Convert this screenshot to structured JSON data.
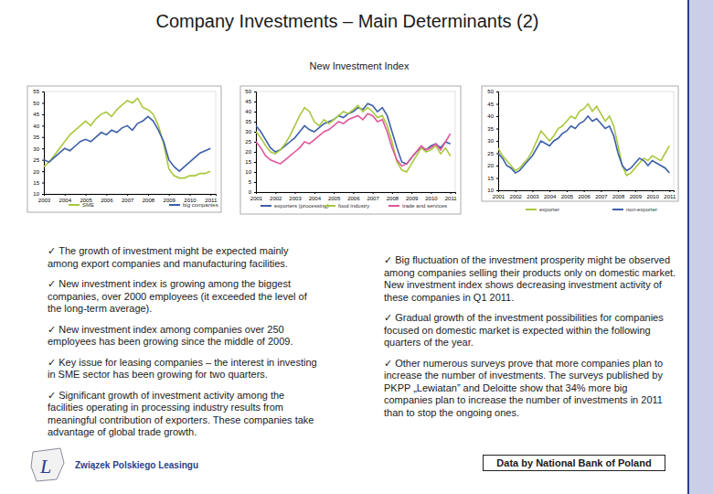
{
  "title": "Company Investments – Main Determinants (2)",
  "subtitle": "New Investment Index",
  "bullet_mark": "✓",
  "left_bullets": [
    "The growth of investment might be expected mainly among export companies and manufacturing facilities.",
    "New investment index is growing among the biggest companies, over 2000 employees (it exceeded the level of the long-term average).",
    "New investment index among companies over 250 employees has been growing since the middle of 2009.",
    "Key issue for leasing companies – the interest in investing in SME sector has been growing for two quarters.",
    "Significant growth of investment activity among the facilities operating in processing industry results from meaningful contribution of exporters. These companies take advantage of global trade growth."
  ],
  "right_bullets": [
    "Big fluctuation of the investment prosperity might be observed among companies selling their products only on domestic market. New investment index shows decreasing investment activity of these companies in Q1 2011.",
    "Gradual growth of the investment possibilities for companies focused on domestic market is expected within the following quarters of the year.",
    "Other numerous surveys prove that more companies plan to increase the number of investments. The surveys published by PKPP „Lewiatan” and Deloitte show that 34% more big companies plan to increase the number of investments in 2011 than to stop the ongoing ones."
  ],
  "source": "Data by National Bank of Poland",
  "logo_mark": "L",
  "logo_text": "Związek Polskiego Leasingu",
  "chart_data": [
    {
      "type": "line",
      "grid": false,
      "x": [
        2003,
        2003.25,
        2003.5,
        2003.75,
        2004,
        2004.25,
        2004.5,
        2004.75,
        2005,
        2005.25,
        2005.5,
        2005.75,
        2006,
        2006.25,
        2006.5,
        2006.75,
        2007,
        2007.25,
        2007.5,
        2007.75,
        2008,
        2008.25,
        2008.5,
        2008.75,
        2009,
        2009.25,
        2009.5,
        2009.75,
        2010,
        2010.25,
        2010.5,
        2010.75,
        2011
      ],
      "xlim": [
        2003,
        2011.25
      ],
      "xticks": [
        2003,
        2004,
        2005,
        2006,
        2007,
        2008,
        2009,
        2010,
        2011
      ],
      "ylim": [
        10,
        55
      ],
      "yticks": [
        10,
        15,
        20,
        25,
        30,
        35,
        40,
        45,
        50,
        55
      ],
      "series": [
        {
          "name": "SME",
          "color": "#a8c83c",
          "values": [
            22,
            24,
            27,
            30,
            33,
            36,
            38,
            40,
            42,
            40,
            43,
            45,
            46,
            44,
            47,
            49,
            51,
            50,
            52,
            48,
            47,
            45,
            40,
            32,
            21,
            18,
            17,
            17,
            18,
            18,
            19,
            19,
            20
          ]
        },
        {
          "name": "big companies",
          "color": "#3d5fa8",
          "values": [
            25,
            24,
            26,
            28,
            30,
            29,
            31,
            33,
            34,
            33,
            35,
            37,
            36,
            38,
            37,
            39,
            40,
            38,
            41,
            42,
            44,
            42,
            38,
            33,
            25,
            22,
            20,
            22,
            24,
            26,
            28,
            29,
            30
          ]
        }
      ]
    },
    {
      "type": "line",
      "grid": false,
      "x": [
        2001,
        2001.25,
        2001.5,
        2001.75,
        2002,
        2002.25,
        2002.5,
        2002.75,
        2003,
        2003.25,
        2003.5,
        2003.75,
        2004,
        2004.25,
        2004.5,
        2004.75,
        2005,
        2005.25,
        2005.5,
        2005.75,
        2006,
        2006.25,
        2006.5,
        2006.75,
        2007,
        2007.25,
        2007.5,
        2007.75,
        2008,
        2008.25,
        2008.5,
        2008.75,
        2009,
        2009.25,
        2009.5,
        2009.75,
        2010,
        2010.25,
        2010.5,
        2010.75,
        2011
      ],
      "xlim": [
        2001,
        2011.25
      ],
      "xticks": [
        2001,
        2002,
        2003,
        2004,
        2005,
        2006,
        2007,
        2008,
        2009,
        2010,
        2011
      ],
      "ylim": [
        0,
        50
      ],
      "yticks": [
        0,
        5,
        10,
        15,
        20,
        25,
        30,
        35,
        40,
        45,
        50
      ],
      "series": [
        {
          "name": "exporters (processing)",
          "color": "#3d5fa8",
          "values": [
            33,
            30,
            26,
            22,
            20,
            21,
            23,
            25,
            27,
            30,
            33,
            31,
            30,
            32,
            34,
            35,
            36,
            38,
            37,
            39,
            40,
            42,
            41,
            44,
            43,
            40,
            42,
            38,
            30,
            22,
            15,
            14,
            17,
            20,
            22,
            21,
            23,
            24,
            22,
            25,
            24
          ]
        },
        {
          "name": "food industry",
          "color": "#a8c83c",
          "values": [
            30,
            27,
            23,
            20,
            19,
            21,
            24,
            28,
            33,
            38,
            42,
            40,
            35,
            33,
            36,
            34,
            36,
            38,
            40,
            39,
            41,
            43,
            40,
            42,
            40,
            37,
            38,
            33,
            25,
            15,
            11,
            10,
            14,
            18,
            22,
            20,
            21,
            23,
            19,
            22,
            18
          ]
        },
        {
          "name": "trade and services",
          "color": "#e0559c",
          "values": [
            25,
            22,
            18,
            16,
            15,
            14,
            16,
            18,
            20,
            22,
            25,
            24,
            26,
            28,
            30,
            31,
            33,
            35,
            34,
            36,
            37,
            38,
            36,
            39,
            38,
            35,
            36,
            30,
            22,
            16,
            13,
            14,
            17,
            20,
            23,
            21,
            22,
            24,
            21,
            25,
            29
          ]
        }
      ]
    },
    {
      "type": "line",
      "grid": false,
      "x": [
        2001,
        2001.25,
        2001.5,
        2001.75,
        2002,
        2002.25,
        2002.5,
        2002.75,
        2003,
        2003.25,
        2003.5,
        2003.75,
        2004,
        2004.25,
        2004.5,
        2004.75,
        2005,
        2005.25,
        2005.5,
        2005.75,
        2006,
        2006.25,
        2006.5,
        2006.75,
        2007,
        2007.25,
        2007.5,
        2007.75,
        2008,
        2008.25,
        2008.5,
        2008.75,
        2009,
        2009.25,
        2009.5,
        2009.75,
        2010,
        2010.25,
        2010.5,
        2010.75,
        2011
      ],
      "xlim": [
        2001,
        2011.25
      ],
      "xticks": [
        2001,
        2002,
        2003,
        2004,
        2005,
        2006,
        2007,
        2008,
        2009,
        2010,
        2011
      ],
      "ylim": [
        10,
        50
      ],
      "yticks": [
        10,
        15,
        20,
        25,
        30,
        35,
        40,
        45,
        50
      ],
      "series": [
        {
          "name": "exporter",
          "color": "#a8c83c",
          "values": [
            27,
            24,
            22,
            20,
            18,
            19,
            21,
            23,
            26,
            30,
            34,
            32,
            30,
            32,
            35,
            36,
            38,
            40,
            39,
            42,
            43,
            45,
            42,
            44,
            41,
            38,
            40,
            36,
            28,
            20,
            16,
            17,
            19,
            21,
            23,
            22,
            24,
            23,
            22,
            25,
            28
          ]
        },
        {
          "name": "non-exporter",
          "color": "#3d5fa8",
          "values": [
            25,
            23,
            20,
            19,
            17,
            18,
            20,
            22,
            24,
            27,
            30,
            29,
            28,
            30,
            31,
            33,
            34,
            36,
            35,
            37,
            38,
            40,
            38,
            39,
            37,
            35,
            36,
            32,
            25,
            20,
            18,
            19,
            21,
            23,
            22,
            20,
            22,
            21,
            20,
            19,
            17
          ]
        }
      ]
    }
  ]
}
